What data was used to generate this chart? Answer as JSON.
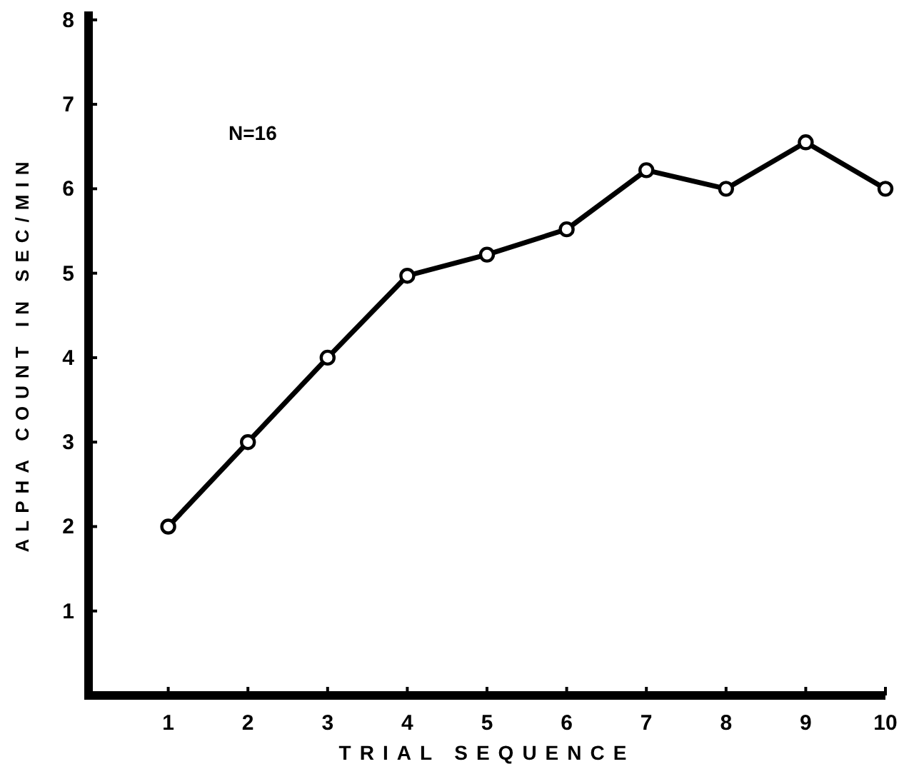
{
  "chart_data": {
    "type": "line",
    "xlabel": "TRIAL SEQUENCE",
    "ylabel": "ALPHA COUNT IN SEC/MIN",
    "annotations": [
      "N=16"
    ],
    "x": [
      1,
      2,
      3,
      4,
      5,
      6,
      7,
      8,
      9,
      10
    ],
    "values": [
      2,
      3,
      4,
      4.97,
      5.22,
      5.52,
      6.22,
      6.0,
      6.55,
      6.0
    ],
    "color": "#000000",
    "marker": "circle",
    "line_style": "solid",
    "grid": false,
    "xlim": [
      0,
      10
    ],
    "xticks": [
      1,
      2,
      3,
      4,
      5,
      6,
      7,
      8,
      9,
      10
    ],
    "ylim": [
      0,
      8.1
    ],
    "yticks": [
      1,
      2,
      3,
      4,
      5,
      6,
      7,
      8
    ]
  }
}
